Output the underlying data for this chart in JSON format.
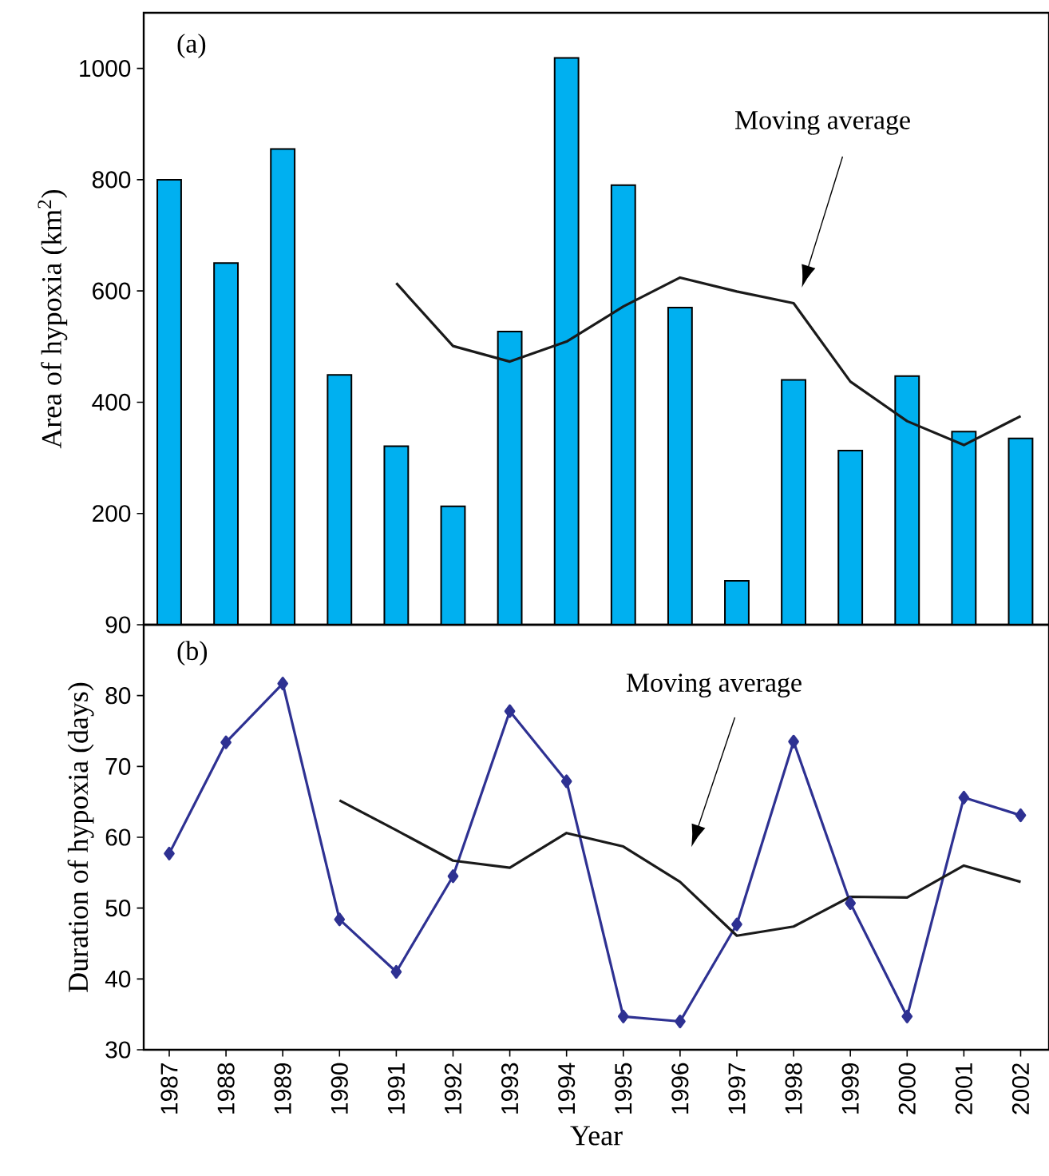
{
  "chart_data": [
    {
      "type": "bar",
      "ylabel": "Area of hypoxia (km$^{2}$)",
      "annotations": [
        "(a)",
        "Moving average"
      ],
      "categories": [
        "1987",
        "1988",
        "1989",
        "1990",
        "1991",
        "1992",
        "1993",
        "1994",
        "1995",
        "1996",
        "1997",
        "1998",
        "1999",
        "2000",
        "2001",
        "2002"
      ],
      "series": [
        {
          "type": "bar",
          "color": "#00b0f0",
          "values": [
            800,
            650,
            855,
            449,
            321,
            213,
            527,
            1019,
            790,
            570,
            79,
            440,
            313,
            447,
            347,
            335
          ]
        },
        {
          "type": "line",
          "color": "#1a1a1a",
          "values": [
            null,
            null,
            null,
            null,
            614,
            501,
            473,
            509,
            572,
            624,
            599,
            578,
            437,
            366,
            323,
            375
          ]
        }
      ],
      "ylim": [
        0,
        1100
      ],
      "yticks": [
        200,
        400,
        600,
        800,
        1000
      ],
      "tick_labels": "y"
    },
    {
      "type": "line",
      "xlabel": "Year",
      "ylabel": "Duration of hypoxia (days)",
      "annotations": [
        "(b)",
        "Moving average"
      ],
      "categories": [
        "1987",
        "1988",
        "1989",
        "1990",
        "1991",
        "1992",
        "1993",
        "1994",
        "1995",
        "1996",
        "1997",
        "1998",
        "1999",
        "2000",
        "2001",
        "2002"
      ],
      "series": [
        {
          "color": "#2e3192",
          "marker": "diamond",
          "values": [
            57.7,
            73.4,
            81.7,
            48.4,
            41.0,
            54.5,
            77.8,
            67.9,
            34.7,
            34.0,
            47.7,
            73.5,
            50.7,
            34.7,
            65.6,
            63.1
          ]
        },
        {
          "color": "#1a1a1a",
          "marker": "none",
          "values": [
            null,
            null,
            null,
            65.2,
            61.0,
            56.7,
            55.7,
            60.6,
            58.7,
            53.7,
            46.1,
            47.4,
            51.6,
            51.5,
            56.0,
            53.7
          ]
        }
      ],
      "ylim": [
        30,
        90
      ],
      "yticks": [
        30,
        40,
        50,
        60,
        70,
        80,
        90
      ]
    }
  ]
}
